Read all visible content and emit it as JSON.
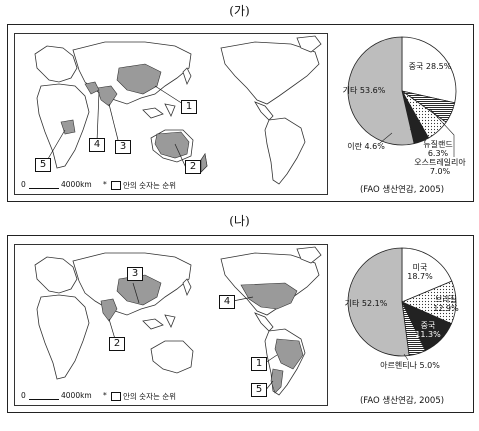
{
  "sections": [
    {
      "label": "(가)",
      "map": {
        "scale_text": "4000km",
        "scale_zero": "0",
        "note_prefix": "*",
        "note_text": "안의 숫자는 순위",
        "ranks": [
          "1",
          "2",
          "3",
          "4",
          "5"
        ]
      },
      "source": "(FAO 생산연감, 2005)",
      "chart_data": {
        "type": "pie",
        "slices": [
          {
            "label": "중국",
            "value": 28.5,
            "text": "28.5%"
          },
          {
            "label": "뉴질랜드",
            "value": 6.3,
            "text": "6.3%"
          },
          {
            "label": "오스트레일리아",
            "value": 7.0,
            "text": "7.0%"
          },
          {
            "label": "이란",
            "value": 4.6,
            "text": "4.6%"
          },
          {
            "label": "기타",
            "value": 53.6,
            "text": "53.6%"
          }
        ]
      }
    },
    {
      "label": "(나)",
      "map": {
        "scale_text": "4000km",
        "scale_zero": "0",
        "note_prefix": "*",
        "note_text": "안의 숫자는 순위",
        "ranks": [
          "1",
          "2",
          "3",
          "4",
          "5"
        ]
      },
      "source": "(FAO 생산연감, 2005)",
      "chart_data": {
        "type": "pie",
        "slices": [
          {
            "label": "미국",
            "value": 18.7,
            "text": "18.7%"
          },
          {
            "label": "브라질",
            "value": 12.9,
            "text": "12.9%"
          },
          {
            "label": "중국",
            "value": 11.3,
            "text": "11.3%"
          },
          {
            "label": "아르헨티나",
            "value": 5.0,
            "text": "5.0%"
          },
          {
            "label": "기타",
            "value": 52.1,
            "text": "52.1%"
          }
        ]
      }
    }
  ]
}
